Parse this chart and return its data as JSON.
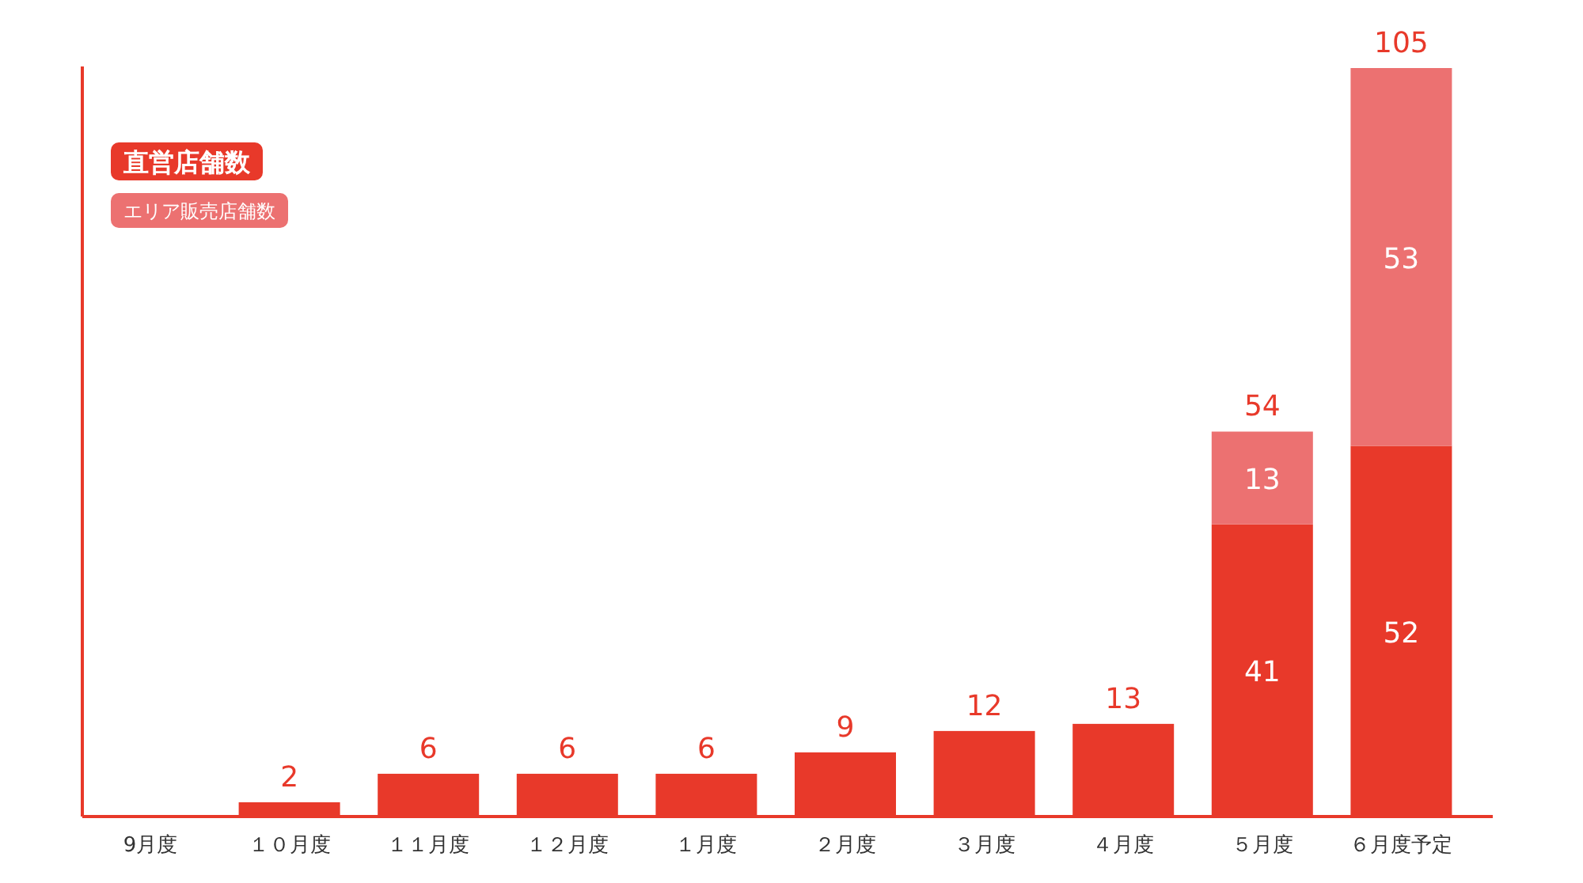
{
  "chart_data": {
    "type": "bar",
    "stacked": true,
    "legend": "top left",
    "categories": [
      "9月度",
      "１０月度",
      "１１月度",
      "１２月度",
      "１月度",
      "２月度",
      "３月度",
      "４月度",
      "５月度",
      "６月度予定"
    ],
    "series": [
      {
        "name": "直営店舗数",
        "color": "#e8392a",
        "values": [
          null,
          2,
          6,
          6,
          6,
          9,
          12,
          13,
          41,
          52
        ],
        "value_labels": [
          null,
          null,
          null,
          null,
          null,
          null,
          null,
          null,
          "41",
          "52"
        ]
      },
      {
        "name": "エリア販売店舗数",
        "color": "#ec7171",
        "values": [
          null,
          null,
          null,
          null,
          null,
          null,
          null,
          null,
          13,
          53
        ],
        "value_labels": [
          null,
          null,
          null,
          null,
          null,
          null,
          null,
          null,
          "13",
          "53"
        ]
      }
    ],
    "totals": [
      null,
      "2",
      "6",
      "6",
      "6",
      "9",
      "12",
      "13",
      "54",
      "105"
    ]
  }
}
